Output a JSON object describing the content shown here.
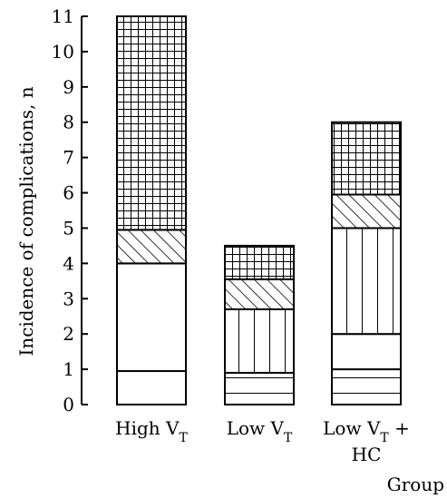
{
  "chart_data": {
    "type": "bar",
    "stacked": true,
    "ylabel": "Incidence of complications, n",
    "xlabel": "Group",
    "ylim": [
      0,
      11
    ],
    "yticks": [
      "0",
      "1",
      "2",
      "3",
      "4",
      "5",
      "6",
      "7",
      "8",
      "9",
      "10",
      "11"
    ],
    "groups": [
      {
        "label": "High V",
        "label_sub": "T",
        "label_suffix": "",
        "label_line2": "",
        "segments": [
          {
            "pattern": "blank",
            "from": 0,
            "to": 0.95
          },
          {
            "pattern": "blank",
            "from": 0.95,
            "to": 4.0
          },
          {
            "pattern": "diagonal",
            "from": 4.0,
            "to": 4.95
          },
          {
            "pattern": "grid",
            "from": 4.95,
            "to": 11.0
          }
        ]
      },
      {
        "label": "Low V",
        "label_sub": "T",
        "label_suffix": "",
        "label_line2": "",
        "segments": [
          {
            "pattern": "horizontal",
            "from": 0,
            "to": 0.9
          },
          {
            "pattern": "vertical",
            "from": 0.9,
            "to": 2.7
          },
          {
            "pattern": "diagonal",
            "from": 2.7,
            "to": 3.55
          },
          {
            "pattern": "grid",
            "from": 3.55,
            "to": 4.5
          }
        ]
      },
      {
        "label": "Low V",
        "label_sub": "T",
        "label_suffix": " +",
        "label_line2": "HC",
        "segments": [
          {
            "pattern": "horizontal",
            "from": 0,
            "to": 1.0
          },
          {
            "pattern": "blank",
            "from": 1.0,
            "to": 2.0
          },
          {
            "pattern": "vertical",
            "from": 2.0,
            "to": 5.0
          },
          {
            "pattern": "diagonal",
            "from": 5.0,
            "to": 5.95
          },
          {
            "pattern": "grid",
            "from": 5.95,
            "to": 8.0
          }
        ]
      }
    ],
    "grid": false,
    "legend": "none"
  }
}
